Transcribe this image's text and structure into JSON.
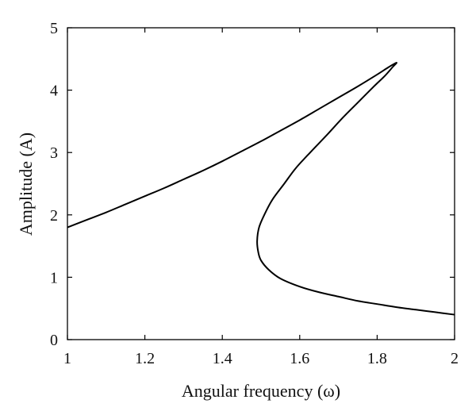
{
  "chart_data": {
    "type": "line",
    "xlabel": "Angular frequency (ω)",
    "ylabel": "Amplitude (A)",
    "xlim": [
      1,
      2
    ],
    "ylim": [
      0,
      5
    ],
    "xticks": [
      "1",
      "1.2",
      "1.4",
      "1.6",
      "1.8",
      "2"
    ],
    "yticks": [
      "0",
      "1",
      "2",
      "3",
      "4",
      "5"
    ],
    "grid": false,
    "series": [
      {
        "color": "#000000",
        "points": [
          [
            1.0,
            1.8
          ],
          [
            1.05,
            1.92
          ],
          [
            1.1,
            2.04
          ],
          [
            1.15,
            2.17
          ],
          [
            1.2,
            2.3
          ],
          [
            1.25,
            2.43
          ],
          [
            1.3,
            2.57
          ],
          [
            1.35,
            2.71
          ],
          [
            1.4,
            2.86
          ],
          [
            1.45,
            3.02
          ],
          [
            1.5,
            3.18
          ],
          [
            1.55,
            3.35
          ],
          [
            1.6,
            3.52
          ],
          [
            1.65,
            3.7
          ],
          [
            1.7,
            3.88
          ],
          [
            1.75,
            4.06
          ],
          [
            1.8,
            4.25
          ],
          [
            1.83,
            4.37
          ],
          [
            1.85,
            4.44
          ],
          [
            1.84,
            4.37
          ],
          [
            1.82,
            4.23
          ],
          [
            1.79,
            4.05
          ],
          [
            1.75,
            3.8
          ],
          [
            1.71,
            3.55
          ],
          [
            1.67,
            3.28
          ],
          [
            1.63,
            3.02
          ],
          [
            1.59,
            2.75
          ],
          [
            1.56,
            2.5
          ],
          [
            1.53,
            2.25
          ],
          [
            1.51,
            2.02
          ],
          [
            1.495,
            1.8
          ],
          [
            1.49,
            1.58
          ],
          [
            1.493,
            1.4
          ],
          [
            1.5,
            1.27
          ],
          [
            1.52,
            1.12
          ],
          [
            1.55,
            0.98
          ],
          [
            1.6,
            0.85
          ],
          [
            1.65,
            0.76
          ],
          [
            1.7,
            0.69
          ],
          [
            1.75,
            0.62
          ],
          [
            1.8,
            0.57
          ],
          [
            1.85,
            0.52
          ],
          [
            1.9,
            0.48
          ],
          [
            1.95,
            0.44
          ],
          [
            2.0,
            0.4
          ]
        ]
      }
    ]
  }
}
